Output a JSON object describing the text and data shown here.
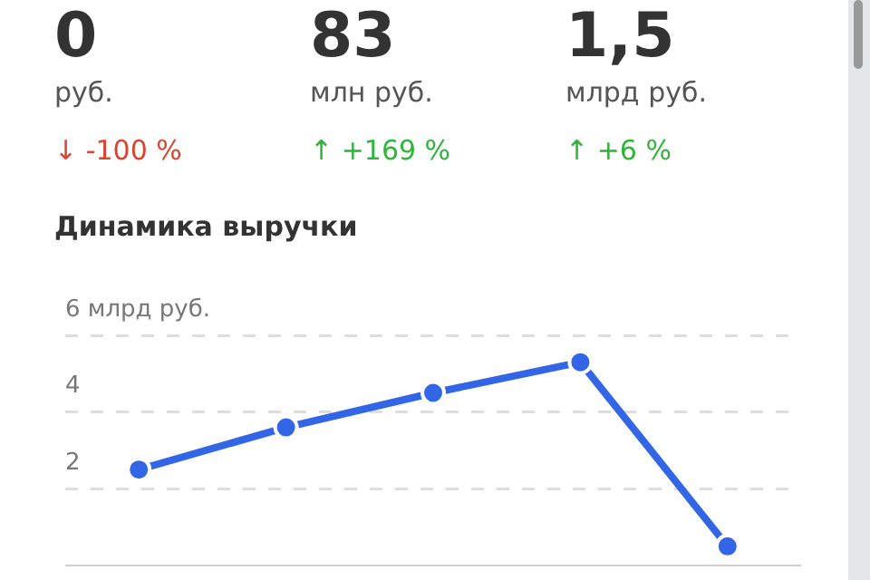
{
  "chart_data": [
    {
      "type": "other",
      "annotations": [
        "0",
        "руб.",
        "↓ -100 %",
        "83",
        "млн руб.",
        "↑ +169 %",
        "1,5",
        "млрд руб.",
        "↑ +6 %"
      ]
    },
    {
      "type": "line",
      "title": "Динамика выручки",
      "categories": [
        null,
        null,
        null,
        null,
        null
      ],
      "series": [
        {
          "color": "#3366e6",
          "values": [
            2.5,
            3.6,
            4.5,
            5.3,
            0.5
          ]
        }
      ],
      "ylim": [
        0,
        6
      ],
      "yticks": [
        {
          "value": 2,
          "label": "2"
        },
        {
          "value": 4,
          "label": "4"
        },
        {
          "value": 6,
          "label": "6 млрд руб."
        }
      ],
      "grid": "y",
      "marker": "circle",
      "line_style": "solid",
      "legend": false,
      "tick_labels": "y"
    }
  ]
}
